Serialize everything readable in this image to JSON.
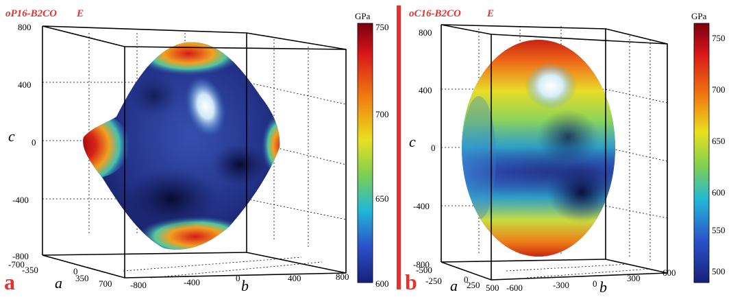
{
  "panel_a": {
    "title": "oP16-B2CO",
    "modulus_symbol": "E",
    "panel_label": "a",
    "colorbar_unit": "GPa",
    "colorbar_ticks": [
      "750",
      "700",
      "650",
      "600"
    ],
    "c_ticks": [
      "800",
      "400",
      "0",
      "-400",
      "-800"
    ],
    "a_ticks": [
      "-700",
      "-350",
      "0",
      "350",
      "700"
    ],
    "b_ticks": [
      "-800",
      "-400",
      "0",
      "400",
      "800"
    ],
    "axis_a": "a",
    "axis_b": "b",
    "axis_c": "c"
  },
  "panel_b": {
    "title": "oC16-B2CO",
    "modulus_symbol": "E",
    "panel_label": "b",
    "colorbar_unit": "GPa",
    "colorbar_ticks": [
      "750",
      "700",
      "650",
      "600",
      "550",
      "500"
    ],
    "c_ticks": [
      "800",
      "400",
      "0",
      "-400",
      "-800"
    ],
    "a_ticks": [
      "-500",
      "-250",
      "0",
      "250",
      "500"
    ],
    "b_ticks": [
      "-600",
      "-300",
      "0",
      "300",
      "600"
    ],
    "axis_a": "a",
    "axis_b": "b",
    "axis_c": "c"
  },
  "colors": {
    "accent_red": "#e8302c",
    "surface_dark": "#121a5a",
    "surface_mid": "#2c3fa0"
  }
}
